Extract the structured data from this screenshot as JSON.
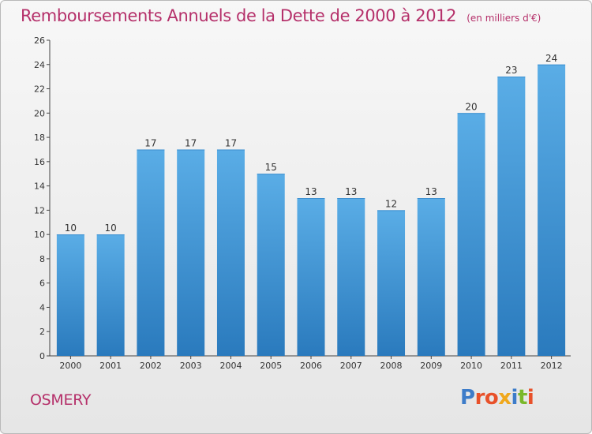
{
  "header": {
    "title": "Remboursements Annuels de la Dette de 2000 à 2012",
    "subtitle": "(en milliers d'€)"
  },
  "footer": {
    "commune": "OSMERY",
    "logo_text": "Proxiti"
  },
  "colors": {
    "title": "#b5306a",
    "bar_top": "#5aade6",
    "bar_bottom": "#2a7abd",
    "logo_letters": [
      "#3d7cc9",
      "#e8512a",
      "#e8512a",
      "#f0a81c",
      "#3d7cc9",
      "#7ab82a",
      "#e8512a"
    ]
  },
  "chart_data": {
    "type": "bar",
    "title": "Remboursements Annuels de la Dette de 2000 à 2012",
    "xlabel": "",
    "ylabel": "",
    "categories": [
      "2000",
      "2001",
      "2002",
      "2003",
      "2004",
      "2005",
      "2006",
      "2007",
      "2008",
      "2009",
      "2010",
      "2011",
      "2012"
    ],
    "values": [
      10,
      10,
      17,
      17,
      17,
      15,
      13,
      13,
      12,
      13,
      20,
      23,
      24
    ],
    "ylim": [
      0,
      26
    ],
    "yticks": [
      0,
      2,
      4,
      6,
      8,
      10,
      12,
      14,
      16,
      18,
      20,
      22,
      24,
      26
    ],
    "grid": false
  }
}
